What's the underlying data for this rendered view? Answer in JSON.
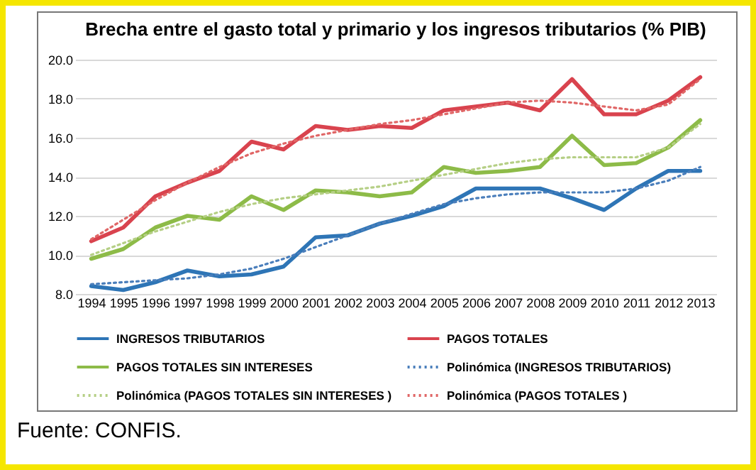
{
  "chart_data": {
    "type": "line",
    "title": "Brecha entre el gasto total y primario y los ingresos tributarios (% PIB)",
    "categories": [
      "1994",
      "1995",
      "1996",
      "1997",
      "1998",
      "1999",
      "2000",
      "2001",
      "2002",
      "2003",
      "2004",
      "2005",
      "2006",
      "2007",
      "2008",
      "2009",
      "2010",
      "2011",
      "2012",
      "2013"
    ],
    "ylim": [
      8,
      20
    ],
    "yticks": [
      {
        "value": 8,
        "label": "8.0"
      },
      {
        "value": 10,
        "label": "10.0"
      },
      {
        "value": 12,
        "label": "12.0"
      },
      {
        "value": 14,
        "label": "14.0"
      },
      {
        "value": 16,
        "label": "16.0"
      },
      {
        "value": 18,
        "label": "18.0"
      },
      {
        "value": 20,
        "label": "20.0"
      }
    ],
    "grid": "y",
    "legend": "bottom",
    "marker": "none",
    "series": [
      {
        "name": "INGRESOS TRIBUTARIOS",
        "color": "#2e75b6",
        "line_style": "solid",
        "values": [
          8.4,
          8.2,
          8.6,
          9.2,
          8.9,
          9.0,
          9.4,
          10.9,
          11.0,
          11.6,
          12.0,
          12.5,
          13.4,
          13.4,
          13.4,
          12.9,
          12.3,
          13.4,
          14.3,
          14.3
        ]
      },
      {
        "name": "PAGOS TOTALES",
        "color": "#d9434e",
        "line_style": "solid",
        "values": [
          10.7,
          11.4,
          13.0,
          13.7,
          14.3,
          15.8,
          15.4,
          16.6,
          16.4,
          16.6,
          16.5,
          17.4,
          17.6,
          17.8,
          17.4,
          19.0,
          17.2,
          17.2,
          17.9,
          19.1
        ]
      },
      {
        "name": "PAGOS TOTALES SIN INTERESES",
        "color": "#8dbb48",
        "line_style": "solid",
        "values": [
          9.8,
          10.3,
          11.4,
          12.0,
          11.8,
          13.0,
          12.3,
          13.3,
          13.2,
          13.0,
          13.2,
          14.5,
          14.2,
          14.3,
          14.5,
          16.1,
          14.6,
          14.7,
          15.5,
          16.9
        ]
      },
      {
        "name": "Polinómica (INGRESOS TRIBUTARIOS)",
        "color": "#4a7ebb",
        "line_style": "dotted",
        "values": [
          8.5,
          8.6,
          8.7,
          8.8,
          9.0,
          9.3,
          9.8,
          10.4,
          11.0,
          11.6,
          12.1,
          12.6,
          12.9,
          13.1,
          13.2,
          13.2,
          13.2,
          13.4,
          13.8,
          14.5
        ]
      },
      {
        "name": "Polinómica (PAGOS TOTALES SIN INTERESES )",
        "color": "#b5cf85",
        "line_style": "dotted",
        "values": [
          10.0,
          10.6,
          11.2,
          11.7,
          12.2,
          12.6,
          12.9,
          13.1,
          13.3,
          13.5,
          13.8,
          14.1,
          14.4,
          14.7,
          14.9,
          15.0,
          15.0,
          15.0,
          15.5,
          16.7
        ]
      },
      {
        "name": "Polinómica (PAGOS TOTALES )",
        "color": "#e06666",
        "line_style": "dotted",
        "values": [
          10.8,
          11.8,
          12.8,
          13.7,
          14.5,
          15.2,
          15.7,
          16.1,
          16.4,
          16.7,
          16.9,
          17.2,
          17.5,
          17.8,
          17.9,
          17.8,
          17.6,
          17.4,
          17.7,
          19.0
        ]
      }
    ],
    "annotations": [
      "Fuente: CONFIS."
    ]
  }
}
